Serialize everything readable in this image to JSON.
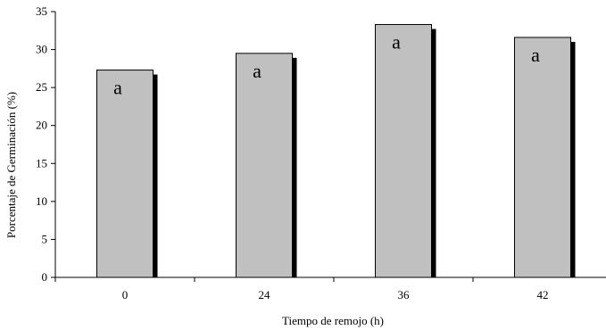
{
  "chart_data": {
    "type": "bar",
    "title": "",
    "xlabel": "Tiempo de remojo (h)",
    "ylabel": "Porcentaje de Germinación (%)",
    "categories": [
      "0",
      "24",
      "36",
      "42"
    ],
    "values": [
      27.3,
      29.5,
      33.3,
      31.6
    ],
    "bar_labels": [
      "a",
      "a",
      "a",
      "a"
    ],
    "ylim": [
      0,
      35
    ],
    "yticks": [
      "0",
      "5",
      "10",
      "15",
      "20",
      "25",
      "30",
      "35"
    ],
    "grid": false,
    "legend": "none",
    "colors": {
      "bar_fill": "#c0c0c0",
      "bar_stroke": "#000000",
      "bar_shadow": "#000000",
      "axis": "#000000"
    }
  }
}
